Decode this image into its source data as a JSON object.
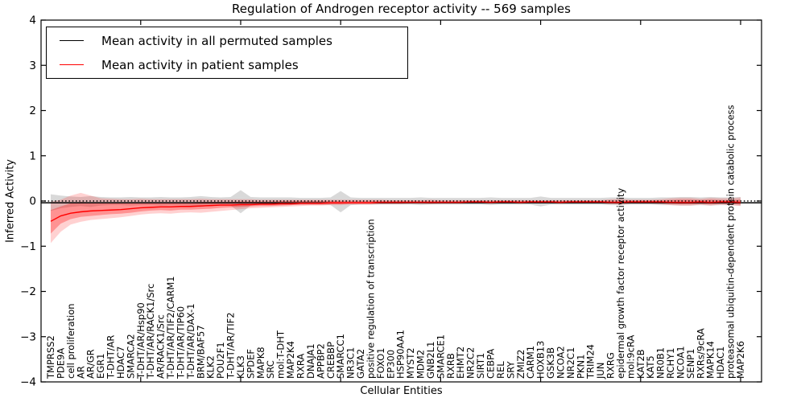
{
  "title": "Regulation of Androgen receptor activity -- 569 samples",
  "legend": {
    "items": [
      {
        "label": "Mean activity in all permuted samples",
        "color": "#000000"
      },
      {
        "label": "Mean activity in patient samples",
        "color": "#ff0000"
      }
    ]
  },
  "chart_data": {
    "type": "line",
    "title": "Regulation of Androgen receptor activity -- 569 samples",
    "xlabel": "Cellular Entities",
    "ylabel": "Inferred Activity",
    "ylim": [
      -4,
      4
    ],
    "yticks": [
      4,
      3,
      2,
      1,
      0,
      -1,
      -2,
      -3,
      -4
    ],
    "yticklabels": [
      "4",
      "3",
      "2",
      "1",
      "0",
      "−1",
      "−2",
      "−3",
      "−4"
    ],
    "xtick_positions": [
      10,
      20,
      30,
      40,
      50,
      60,
      70
    ],
    "grid": false,
    "legend_position": "upper left",
    "reference_line": {
      "y": 0,
      "style": "dotted",
      "color": "#000000"
    },
    "categories": [
      "TMPRSS2",
      "PDE9A",
      "cell proliferation",
      "AR",
      "AR/GR",
      "EGR1",
      "T-DHT/AR",
      "HDAC7",
      "SMARCA2",
      "T-DHT/AR/Hsp90",
      "T-DHT/AR/RACK1/Src",
      "AR/RACK1/Src",
      "T-DHT/AR/TIF2/CARM1",
      "T-DHT/AR/TIP60",
      "T-DHT/AR/DAX-1",
      "BRM/BAF57",
      "KLK2",
      "POU2F1",
      "T-DHT/AR/TIF2",
      "KLK3",
      "SPDEF",
      "MAPK8",
      "SRC",
      "mol:T-DHT",
      "MAP2K4",
      "RXRA",
      "DNAJA1",
      "APPBP2",
      "CREBBP",
      "SMARCC1",
      "NR3C1",
      "GATA2",
      "positive regulation of transcription",
      "FOXO1",
      "EP300",
      "HSP90AA1",
      "MYST2",
      "MDM2",
      "GNB2L1",
      "SMARCE1",
      "RXRB",
      "EHMT2",
      "NR2C2",
      "SIRT1",
      "CEBPA",
      "REL",
      "SRY",
      "ZMIZ2",
      "CARM1",
      "HOXB13",
      "GSK3B",
      "NCOA2",
      "NR2C1",
      "PKN1",
      "TRIM24",
      "JUN",
      "RXRG",
      "epidermal growth factor receptor activity",
      "mol:9cRA",
      "KAT2B",
      "KAT5",
      "NR0B1",
      "RCHY1",
      "NCOA1",
      "SENP1",
      "RXRs/9cRA",
      "MAPK14",
      "HDAC1",
      "proteasomal ubiquitin-dependent protein catabolic process",
      "MAP2K6"
    ],
    "series": [
      {
        "name": "Mean activity in all permuted samples",
        "color": "#000000",
        "style": "solid",
        "full_width": true,
        "values": [
          -0.04,
          -0.04,
          -0.04,
          -0.04,
          -0.04,
          -0.04,
          -0.04,
          -0.04,
          -0.04,
          -0.04,
          -0.04,
          -0.04,
          -0.04,
          -0.04,
          -0.04,
          -0.04,
          -0.04,
          -0.04,
          -0.04,
          -0.04,
          -0.04,
          -0.04,
          -0.04,
          -0.04,
          -0.04,
          -0.04,
          -0.04,
          -0.04,
          -0.04,
          -0.04,
          -0.04,
          -0.04,
          -0.04,
          -0.04,
          -0.04,
          -0.04,
          -0.04,
          -0.04,
          -0.04,
          -0.04,
          -0.04,
          -0.04,
          -0.04,
          -0.04,
          -0.04,
          -0.04,
          -0.04,
          -0.04,
          -0.04,
          -0.04,
          -0.04,
          -0.04,
          -0.04,
          -0.04,
          -0.04,
          -0.04,
          -0.04,
          -0.04,
          -0.04,
          -0.04,
          -0.04,
          -0.04,
          -0.04,
          -0.04,
          -0.04,
          -0.04,
          -0.04,
          -0.04,
          -0.04,
          -0.04
        ]
      },
      {
        "name": "Mean activity in patient samples",
        "color": "#ff0000",
        "style": "solid",
        "full_width": false,
        "values": [
          -0.45,
          -0.33,
          -0.27,
          -0.24,
          -0.22,
          -0.21,
          -0.2,
          -0.19,
          -0.17,
          -0.15,
          -0.14,
          -0.13,
          -0.13,
          -0.12,
          -0.12,
          -0.11,
          -0.1,
          -0.09,
          -0.09,
          -0.08,
          -0.08,
          -0.07,
          -0.07,
          -0.06,
          -0.06,
          -0.05,
          -0.05,
          -0.05,
          -0.04,
          -0.04,
          -0.04,
          -0.04,
          -0.04,
          -0.03,
          -0.03,
          -0.03,
          -0.03,
          -0.03,
          -0.03,
          -0.03,
          -0.03,
          -0.03,
          -0.02,
          -0.02,
          -0.03,
          -0.02,
          -0.02,
          -0.03,
          -0.02,
          -0.02,
          -0.02,
          -0.03,
          -0.02,
          -0.02,
          -0.02,
          -0.02,
          -0.03,
          -0.03,
          -0.02,
          -0.02,
          -0.02,
          -0.02,
          -0.03,
          -0.03,
          -0.03,
          -0.02,
          -0.03,
          -0.02,
          -0.02,
          -0.03
        ]
      }
    ],
    "bands": [
      {
        "name": "permuted-sample-range",
        "color": "#000000",
        "opacity": 0.15,
        "upper": [
          0.15,
          0.12,
          0.1,
          0.09,
          0.11,
          0.09,
          0.08,
          0.08,
          0.09,
          0.08,
          0.08,
          0.09,
          0.08,
          0.08,
          0.09,
          0.11,
          0.09,
          0.08,
          0.09,
          0.24,
          0.09,
          0.08,
          0.08,
          0.08,
          0.08,
          0.07,
          0.07,
          0.07,
          0.08,
          0.22,
          0.08,
          0.07,
          0.07,
          0.07,
          0.07,
          0.07,
          0.07,
          0.08,
          0.07,
          0.07,
          0.07,
          0.07,
          0.07,
          0.07,
          0.08,
          0.07,
          0.07,
          0.07,
          0.07,
          0.1,
          0.07,
          0.07,
          0.07,
          0.07,
          0.07,
          0.07,
          0.08,
          0.08,
          0.07,
          0.07,
          0.07,
          0.08,
          0.08,
          0.09,
          0.09,
          0.08,
          0.09,
          0.08,
          0.08,
          0.09
        ],
        "lower": [
          -0.22,
          -0.16,
          -0.13,
          -0.11,
          -0.13,
          -0.1,
          -0.09,
          -0.09,
          -0.1,
          -0.09,
          -0.09,
          -0.1,
          -0.09,
          -0.09,
          -0.1,
          -0.13,
          -0.1,
          -0.09,
          -0.1,
          -0.27,
          -0.1,
          -0.09,
          -0.09,
          -0.09,
          -0.09,
          -0.08,
          -0.08,
          -0.08,
          -0.09,
          -0.25,
          -0.09,
          -0.08,
          -0.08,
          -0.08,
          -0.08,
          -0.08,
          -0.08,
          -0.09,
          -0.08,
          -0.08,
          -0.08,
          -0.08,
          -0.08,
          -0.08,
          -0.09,
          -0.08,
          -0.08,
          -0.08,
          -0.08,
          -0.12,
          -0.08,
          -0.08,
          -0.08,
          -0.08,
          -0.08,
          -0.08,
          -0.09,
          -0.09,
          -0.08,
          -0.08,
          -0.08,
          -0.09,
          -0.09,
          -0.1,
          -0.1,
          -0.09,
          -0.1,
          -0.09,
          -0.09,
          -0.1
        ]
      },
      {
        "name": "patient-sample-range-outer",
        "color": "#ff0000",
        "opacity": 0.18,
        "upper": [
          -0.02,
          0.03,
          0.12,
          0.18,
          0.12,
          0.06,
          0.05,
          0.04,
          0.04,
          0.05,
          0.04,
          0.04,
          0.04,
          0.04,
          0.04,
          0.05,
          0.04,
          0.04,
          0.04,
          0.04,
          0.04,
          0.03,
          0.03,
          0.03,
          0.03,
          0.03,
          0.03,
          0.03,
          0.03,
          0.03,
          0.03,
          0.03,
          0.03,
          0.03,
          0.02,
          0.02,
          0.02,
          0.02,
          0.03,
          0.02,
          0.02,
          0.02,
          0.02,
          0.02,
          0.02,
          0.02,
          0.02,
          0.02,
          0.02,
          0.02,
          0.02,
          0.02,
          0.02,
          0.02,
          0.02,
          0.02,
          0.04,
          0.05,
          0.03,
          0.03,
          0.03,
          0.04,
          0.06,
          0.07,
          0.07,
          0.05,
          0.07,
          0.06,
          0.06,
          0.08
        ],
        "lower": [
          -0.93,
          -0.68,
          -0.52,
          -0.46,
          -0.42,
          -0.4,
          -0.38,
          -0.36,
          -0.33,
          -0.3,
          -0.28,
          -0.27,
          -0.28,
          -0.26,
          -0.25,
          -0.26,
          -0.24,
          -0.22,
          -0.2,
          -0.18,
          -0.16,
          -0.15,
          -0.14,
          -0.13,
          -0.12,
          -0.11,
          -0.1,
          -0.1,
          -0.09,
          -0.09,
          -0.08,
          -0.08,
          -0.08,
          -0.07,
          -0.07,
          -0.07,
          -0.06,
          -0.06,
          -0.07,
          -0.06,
          -0.06,
          -0.06,
          -0.05,
          -0.05,
          -0.06,
          -0.05,
          -0.05,
          -0.06,
          -0.05,
          -0.05,
          -0.05,
          -0.06,
          -0.05,
          -0.05,
          -0.05,
          -0.05,
          -0.07,
          -0.08,
          -0.06,
          -0.06,
          -0.06,
          -0.07,
          -0.09,
          -0.1,
          -0.1,
          -0.08,
          -0.1,
          -0.08,
          -0.09,
          -0.11
        ]
      },
      {
        "name": "patient-sample-range-inner",
        "color": "#ff0000",
        "opacity": 0.3,
        "upper": [
          -0.2,
          -0.12,
          -0.05,
          -0.02,
          -0.03,
          -0.05,
          -0.05,
          -0.05,
          -0.04,
          -0.03,
          -0.03,
          -0.03,
          -0.03,
          -0.03,
          -0.03,
          -0.02,
          -0.02,
          -0.02,
          -0.02,
          -0.01,
          -0.01,
          -0.01,
          -0.01,
          0.0,
          0.0,
          0.0,
          0.0,
          0.0,
          0.0,
          0.0,
          0.0,
          0.0,
          0.0,
          0.0,
          0.0,
          0.0,
          0.0,
          0.0,
          0.0,
          0.0,
          0.0,
          0.0,
          0.0,
          0.0,
          0.0,
          0.0,
          0.0,
          0.0,
          0.0,
          0.0,
          0.0,
          0.0,
          0.0,
          0.0,
          0.0,
          0.0,
          0.01,
          0.01,
          0.01,
          0.01,
          0.01,
          0.01,
          0.02,
          0.03,
          0.03,
          0.02,
          0.03,
          0.02,
          0.02,
          0.03
        ],
        "lower": [
          -0.72,
          -0.5,
          -0.4,
          -0.35,
          -0.33,
          -0.31,
          -0.29,
          -0.28,
          -0.26,
          -0.23,
          -0.21,
          -0.2,
          -0.21,
          -0.19,
          -0.19,
          -0.18,
          -0.17,
          -0.15,
          -0.14,
          -0.13,
          -0.12,
          -0.11,
          -0.11,
          -0.1,
          -0.09,
          -0.08,
          -0.08,
          -0.08,
          -0.07,
          -0.07,
          -0.06,
          -0.06,
          -0.06,
          -0.05,
          -0.05,
          -0.05,
          -0.05,
          -0.05,
          -0.05,
          -0.05,
          -0.04,
          -0.04,
          -0.04,
          -0.04,
          -0.04,
          -0.04,
          -0.04,
          -0.04,
          -0.04,
          -0.04,
          -0.04,
          -0.04,
          -0.04,
          -0.04,
          -0.04,
          -0.04,
          -0.05,
          -0.06,
          -0.04,
          -0.04,
          -0.04,
          -0.05,
          -0.06,
          -0.07,
          -0.07,
          -0.06,
          -0.07,
          -0.06,
          -0.06,
          -0.08
        ]
      }
    ]
  }
}
